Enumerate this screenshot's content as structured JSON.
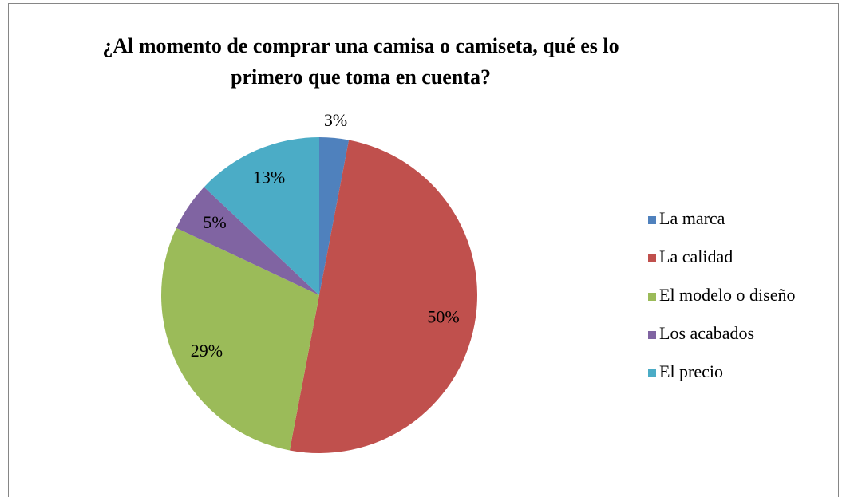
{
  "chart_data": {
    "type": "pie",
    "title": "¿Al momento de comprar una camisa o camiseta, qué es lo primero que toma en cuenta?",
    "categories": [
      "La marca",
      "La calidad",
      "El modelo o diseño",
      "Los acabados",
      "El precio"
    ],
    "values": [
      3,
      50,
      29,
      5,
      13
    ],
    "value_labels": [
      "3%",
      "50%",
      "29%",
      "5%",
      "13%"
    ],
    "colors": [
      "#4F81BD",
      "#C0504D",
      "#9BBB59",
      "#8064A2",
      "#4BACC6"
    ],
    "legend": "right"
  }
}
